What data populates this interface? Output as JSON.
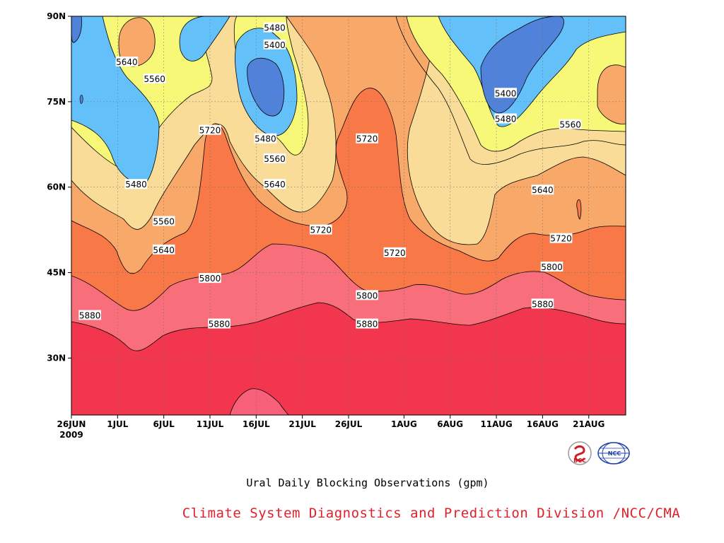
{
  "chart_data": {
    "type": "heatmap",
    "subtype": "filled-contour",
    "title": "",
    "xlabel": "",
    "ylabel": "",
    "x_ticks": [
      "26JUN",
      "1JUL",
      "6JUL",
      "11JUL",
      "16JUL",
      "21JUL",
      "26JUL",
      "1AUG",
      "6AUG",
      "11AUG",
      "16AUG",
      "21AUG"
    ],
    "x_year_label": "2009",
    "y_ticks": [
      "30N",
      "45N",
      "60N",
      "75N",
      "90N"
    ],
    "y_tick_values": [
      30,
      45,
      60,
      75,
      90
    ],
    "xlim": [
      "2009-06-26",
      "2009-08-25"
    ],
    "ylim": [
      20,
      90
    ],
    "contour_levels": [
      5400,
      5480,
      5560,
      5640,
      5720,
      5800,
      5880
    ],
    "fill_colors": {
      "below_5400": "#4f82d8",
      "5400_5480": "#64c0f8",
      "5480_5560": "#f8f878",
      "5560_5640": "#f8dc98",
      "5640_5720": "#f8a868",
      "5720_5800": "#f87848",
      "5800_5880": "#f86e7a",
      "5880_5960": "#f2364e",
      "above_5960": "#f8607a"
    },
    "grid": "dotted",
    "contour_labels": [
      {
        "date": "2009-07-02",
        "lat": 82,
        "value": "5640"
      },
      {
        "date": "2009-07-05",
        "lat": 79,
        "value": "5560"
      },
      {
        "date": "2009-07-03",
        "lat": 60.5,
        "value": "5480"
      },
      {
        "date": "2009-07-06",
        "lat": 54,
        "value": "5560"
      },
      {
        "date": "2009-07-06",
        "lat": 49,
        "value": "5640"
      },
      {
        "date": "2009-07-11",
        "lat": 70,
        "value": "5720"
      },
      {
        "date": "2009-07-18",
        "lat": 88,
        "value": "5480"
      },
      {
        "date": "2009-07-18",
        "lat": 85,
        "value": "5400"
      },
      {
        "date": "2009-07-17",
        "lat": 68.5,
        "value": "5480"
      },
      {
        "date": "2009-07-18",
        "lat": 65,
        "value": "5560"
      },
      {
        "date": "2009-07-18",
        "lat": 60.5,
        "value": "5640"
      },
      {
        "date": "2009-07-23",
        "lat": 52.5,
        "value": "5720"
      },
      {
        "date": "2009-07-28",
        "lat": 68.5,
        "value": "5720"
      },
      {
        "date": "2009-07-11",
        "lat": 44,
        "value": "5800"
      },
      {
        "date": "2009-07-28",
        "lat": 41,
        "value": "5800"
      },
      {
        "date": "2009-06-28",
        "lat": 37.5,
        "value": "5880"
      },
      {
        "date": "2009-07-12",
        "lat": 36,
        "value": "5880"
      },
      {
        "date": "2009-07-28",
        "lat": 36,
        "value": "5880"
      },
      {
        "date": "2009-07-31",
        "lat": 48.5,
        "value": "5720"
      },
      {
        "date": "2009-08-12",
        "lat": 76.5,
        "value": "5400"
      },
      {
        "date": "2009-08-12",
        "lat": 72,
        "value": "5480"
      },
      {
        "date": "2009-08-19",
        "lat": 71,
        "value": "5560"
      },
      {
        "date": "2009-08-16",
        "lat": 59.5,
        "value": "5640"
      },
      {
        "date": "2009-08-18",
        "lat": 51,
        "value": "5720"
      },
      {
        "date": "2009-08-17",
        "lat": 46,
        "value": "5800"
      },
      {
        "date": "2009-08-16",
        "lat": 39.5,
        "value": "5880"
      }
    ]
  },
  "caption": "Ural Daily Blocking Observations (gpm)",
  "credit": "Climate System Diagnostics and Prediction Division /NCC/CMA",
  "logos": [
    {
      "name": "bcc-logo",
      "text": "BCC",
      "color": "#d01c24"
    },
    {
      "name": "ncc-logo",
      "text": "NCC",
      "color": "#1f3fa8"
    }
  ]
}
